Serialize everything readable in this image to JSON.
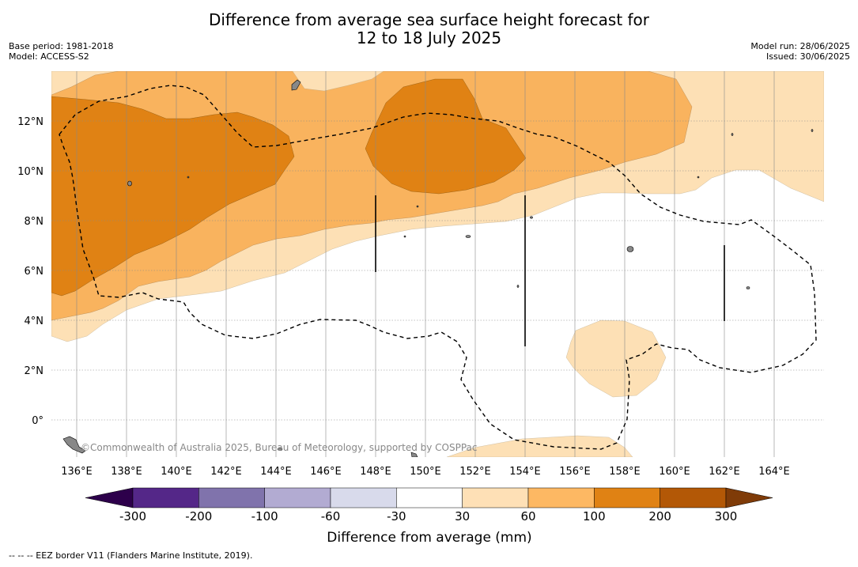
{
  "title_line1": "Difference from average sea surface height forecast for",
  "title_line2": "12 to 18 July 2025",
  "meta_left": {
    "base_period": "Base period: 1981-2018",
    "model": "Model: ACCESS-S2"
  },
  "meta_right": {
    "model_run": "Model run: 28/06/2025",
    "issued": "Issued: 30/06/2025"
  },
  "credit": "©Commonwealth of Australia 2025, Bureau of Meteorology, supported by COSPPac",
  "footnote": "--  --  -- EEZ border V11 (Flanders Marine Institute, 2019).",
  "map": {
    "lon_labels": [
      "136°E",
      "138°E",
      "140°E",
      "142°E",
      "144°E",
      "146°E",
      "148°E",
      "150°E",
      "152°E",
      "154°E",
      "156°E",
      "158°E",
      "160°E",
      "162°E",
      "164°E"
    ],
    "lat_labels": [
      "12°N",
      "10°N",
      "8°N",
      "6°N",
      "4°N",
      "2°N",
      "0°"
    ],
    "lon_range": [
      135,
      166
    ],
    "lat_range": [
      -1.5,
      13.9
    ],
    "colors": {
      "pos_30_60": "#fde0b5",
      "pos_60_100": "#f9b35e",
      "pos_100_200": "#e08214",
      "eez_line": "#000000",
      "land": "#888888"
    }
  },
  "colorbar": {
    "title": "Difference from average (mm)",
    "tick_labels": [
      "-300",
      "-200",
      "-100",
      "-60",
      "-30",
      "30",
      "60",
      "100",
      "200",
      "300"
    ],
    "colors": [
      "#542788",
      "#8073ac",
      "#b2abd2",
      "#d8daeb",
      "#ffffff",
      "#fee0b6",
      "#fdb863",
      "#e08214",
      "#b35806"
    ],
    "under_color": "#2d004b",
    "over_color": "#7f3b08"
  }
}
